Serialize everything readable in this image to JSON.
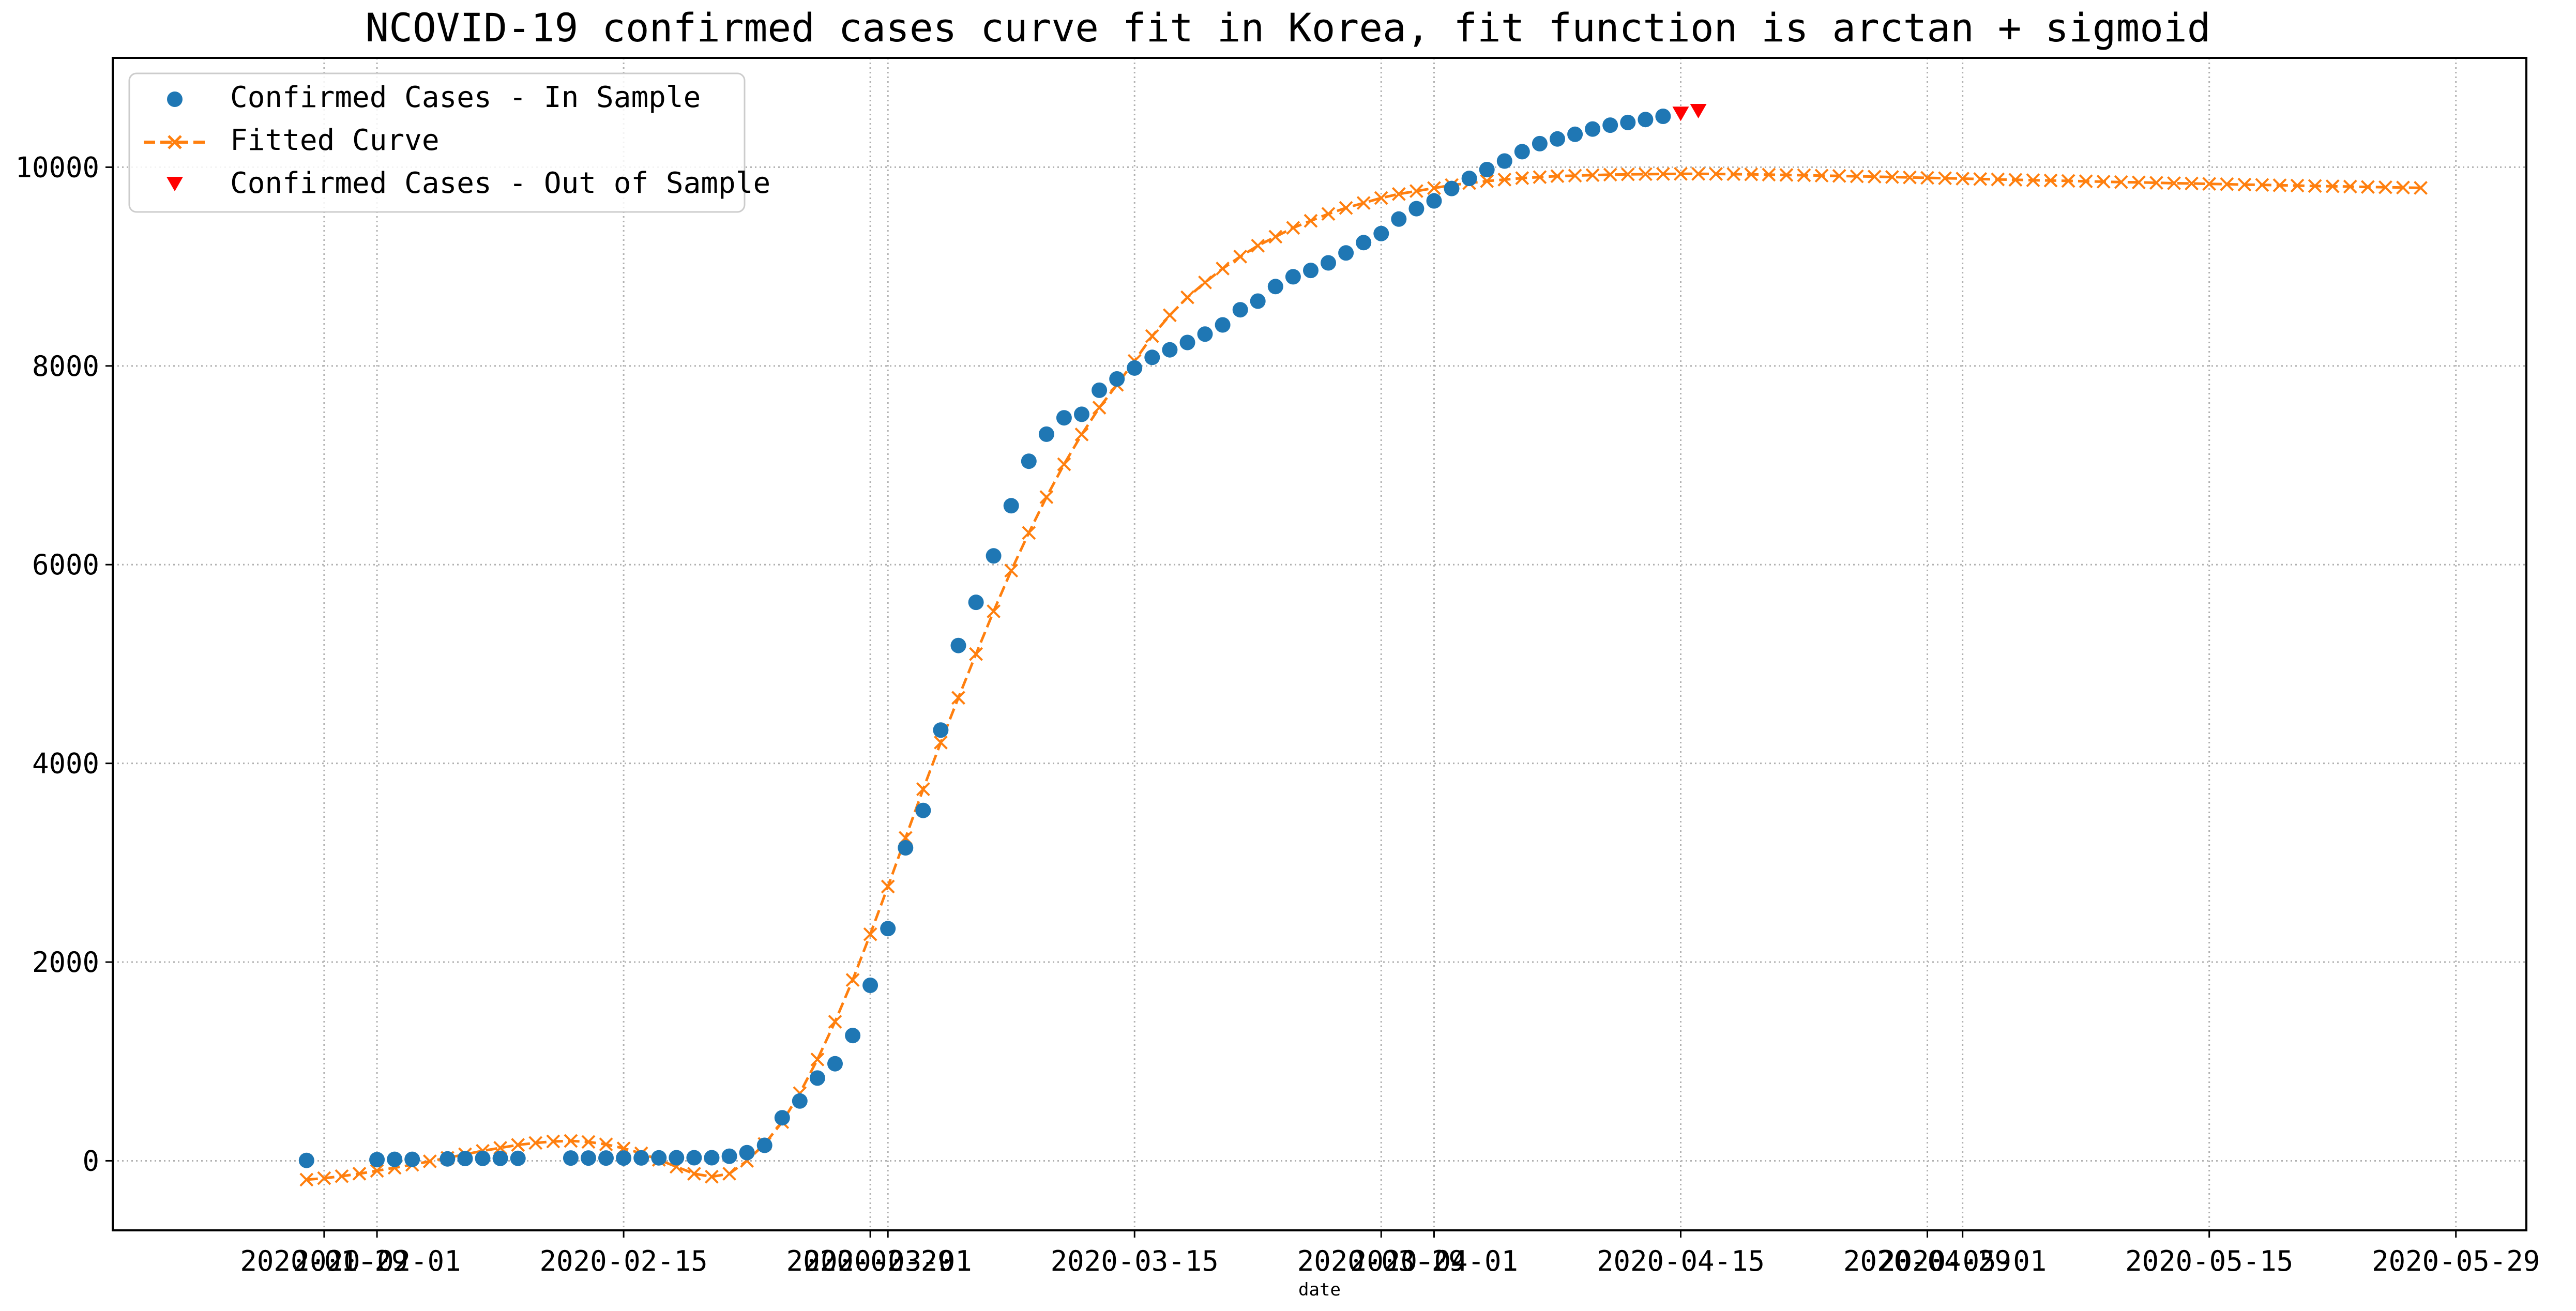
{
  "chart_data": {
    "type": "line",
    "title": "NCOVID-19 confirmed cases curve fit in Korea, fit function is arctan + sigmoid",
    "xlabel": "date",
    "ylabel": "",
    "x_axis_type": "date",
    "xlim": [
      "2020-01-17",
      "2020-06-02"
    ],
    "ylim": [
      -700,
      11100
    ],
    "grid": true,
    "grid_style": "dotted",
    "legend_position": "upper-left",
    "x_ticks": [
      {
        "date": "2020-01-29",
        "label": "2020-01-29"
      },
      {
        "date": "2020-02-01",
        "label": "2020-02-01"
      },
      {
        "date": "2020-02-15",
        "label": "2020-02-15"
      },
      {
        "date": "2020-02-29",
        "label": "2020-02-29"
      },
      {
        "date": "2020-03-01",
        "label": "2020-03-01"
      },
      {
        "date": "2020-03-15",
        "label": "2020-03-15"
      },
      {
        "date": "2020-03-29",
        "label": "2020-03-29"
      },
      {
        "date": "2020-04-01",
        "label": "2020-04-01"
      },
      {
        "date": "2020-04-15",
        "label": "2020-04-15"
      },
      {
        "date": "2020-04-29",
        "label": "2020-04-29"
      },
      {
        "date": "2020-05-01",
        "label": "2020-05-01"
      },
      {
        "date": "2020-05-15",
        "label": "2020-05-15"
      },
      {
        "date": "2020-05-29",
        "label": "2020-05-29"
      }
    ],
    "y_ticks": [
      0,
      2000,
      4000,
      6000,
      8000,
      10000
    ],
    "series": [
      {
        "name": "Confirmed Cases - In Sample",
        "color": "#1f77b4",
        "marker": "circle",
        "line": "none",
        "points": [
          [
            "2020-01-28",
            4
          ],
          [
            "2020-02-01",
            12
          ],
          [
            "2020-02-02",
            15
          ],
          [
            "2020-02-03",
            15
          ],
          [
            "2020-02-05",
            19
          ],
          [
            "2020-02-06",
            23
          ],
          [
            "2020-02-07",
            24
          ],
          [
            "2020-02-08",
            24
          ],
          [
            "2020-02-09",
            25
          ],
          [
            "2020-02-12",
            28
          ],
          [
            "2020-02-13",
            28
          ],
          [
            "2020-02-14",
            28
          ],
          [
            "2020-02-15",
            28
          ],
          [
            "2020-02-16",
            29
          ],
          [
            "2020-02-17",
            30
          ],
          [
            "2020-02-18",
            31
          ],
          [
            "2020-02-19",
            31
          ],
          [
            "2020-02-20",
            31
          ],
          [
            "2020-02-21",
            46
          ],
          [
            "2020-02-22",
            82
          ],
          [
            "2020-02-23",
            156
          ],
          [
            "2020-02-24",
            433
          ],
          [
            "2020-02-25",
            602
          ],
          [
            "2020-02-26",
            833
          ],
          [
            "2020-02-27",
            977
          ],
          [
            "2020-02-28",
            1261
          ],
          [
            "2020-02-29",
            1766
          ],
          [
            "2020-03-01",
            2337
          ],
          [
            "2020-03-02",
            3150
          ],
          [
            "2020-03-03",
            3526
          ],
          [
            "2020-03-04",
            4335
          ],
          [
            "2020-03-05",
            5186
          ],
          [
            "2020-03-06",
            5621
          ],
          [
            "2020-03-07",
            6088
          ],
          [
            "2020-03-08",
            6593
          ],
          [
            "2020-03-09",
            7041
          ],
          [
            "2020-03-10",
            7313
          ],
          [
            "2020-03-11",
            7478
          ],
          [
            "2020-03-12",
            7513
          ],
          [
            "2020-03-13",
            7755
          ],
          [
            "2020-03-14",
            7869
          ],
          [
            "2020-03-15",
            7979
          ],
          [
            "2020-03-16",
            8086
          ],
          [
            "2020-03-17",
            8162
          ],
          [
            "2020-03-18",
            8236
          ],
          [
            "2020-03-19",
            8320
          ],
          [
            "2020-03-20",
            8413
          ],
          [
            "2020-03-21",
            8565
          ],
          [
            "2020-03-22",
            8652
          ],
          [
            "2020-03-23",
            8799
          ],
          [
            "2020-03-24",
            8897
          ],
          [
            "2020-03-25",
            8961
          ],
          [
            "2020-03-26",
            9037
          ],
          [
            "2020-03-27",
            9137
          ],
          [
            "2020-03-28",
            9241
          ],
          [
            "2020-03-29",
            9332
          ],
          [
            "2020-03-30",
            9478
          ],
          [
            "2020-03-31",
            9583
          ],
          [
            "2020-04-01",
            9661
          ],
          [
            "2020-04-02",
            9786
          ],
          [
            "2020-04-03",
            9887
          ],
          [
            "2020-04-04",
            9976
          ],
          [
            "2020-04-05",
            10062
          ],
          [
            "2020-04-06",
            10156
          ],
          [
            "2020-04-07",
            10237
          ],
          [
            "2020-04-08",
            10284
          ],
          [
            "2020-04-09",
            10331
          ],
          [
            "2020-04-10",
            10384
          ],
          [
            "2020-04-11",
            10423
          ],
          [
            "2020-04-12",
            10450
          ],
          [
            "2020-04-13",
            10480
          ],
          [
            "2020-04-14",
            10512
          ]
        ]
      },
      {
        "name": "Fitted Curve",
        "color": "#ff7f0e",
        "marker": "x",
        "line": "dashed",
        "x_start": "2020-01-28",
        "values": [
          -190,
          -175,
          -155,
          -130,
          -100,
          -70,
          -40,
          -5,
          30,
          65,
          100,
          130,
          160,
          180,
          195,
          200,
          190,
          165,
          125,
          75,
          10,
          -60,
          -130,
          -160,
          -130,
          0,
          170,
          390,
          680,
          1020,
          1400,
          1820,
          2280,
          2760,
          3250,
          3740,
          4210,
          4660,
          5100,
          5530,
          5940,
          6320,
          6680,
          7010,
          7310,
          7580,
          7810,
          8050,
          8300,
          8510,
          8690,
          8840,
          8980,
          9100,
          9210,
          9300,
          9390,
          9460,
          9530,
          9590,
          9640,
          9690,
          9730,
          9760,
          9790,
          9820,
          9840,
          9860,
          9875,
          9890,
          9900,
          9910,
          9915,
          9920,
          9925,
          9928,
          9930,
          9932,
          9933,
          9933,
          9932,
          9930,
          9928,
          9925,
          9922,
          9919,
          9915,
          9912,
          9908,
          9905,
          9901,
          9897,
          9893,
          9889,
          9885,
          9881,
          9877,
          9873,
          9869,
          9866,
          9862,
          9858,
          9854,
          9850,
          9847,
          9843,
          9839,
          9836,
          9832,
          9829,
          9825,
          9822,
          9818,
          9815,
          9811,
          9808,
          9805,
          9801,
          9798,
          9795,
          9792
        ]
      },
      {
        "name": "Confirmed Cases - Out of Sample",
        "color": "#ff0000",
        "marker": "triangle-down",
        "line": "none",
        "points": [
          [
            "2020-04-15",
            10537
          ],
          [
            "2020-04-16",
            10564
          ]
        ]
      }
    ]
  }
}
